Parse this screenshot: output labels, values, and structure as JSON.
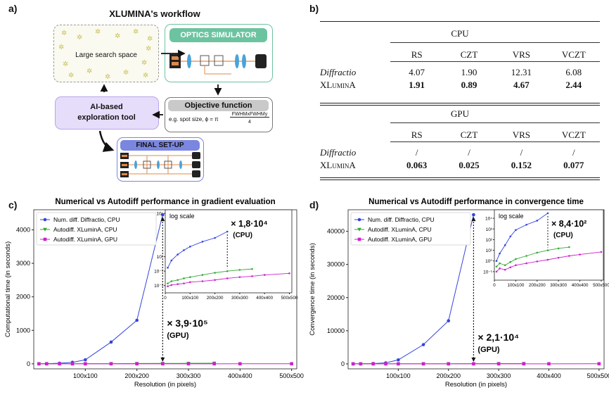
{
  "panels": {
    "a": "a)",
    "b": "b)",
    "c": "c)",
    "d": "d)"
  },
  "workflow": {
    "title": "XLUMINA's workflow",
    "search_space": "Large search space",
    "optics_simulator": "OPTICS SIMULATOR",
    "objective_title": "Objective function",
    "objective_formula_prefix": "e.g. spot size, ϕ = π",
    "objective_numerator": "FWHMxFWHMy",
    "objective_denominator": "4",
    "ai_tool": "AI-based exploration tool",
    "final_setup": "FINAL SET-UP",
    "colors": {
      "green": "#6cc3a0",
      "purple": "#b9a6e8",
      "blue": "#7b86e0",
      "gray": "#c9c9c9",
      "star": "#c7c257"
    }
  },
  "table": {
    "cpu_title": "CPU",
    "gpu_title": "GPU",
    "columns": [
      "RS",
      "CZT",
      "VRS",
      "VCZT"
    ],
    "cpu_rows": [
      {
        "label": "Diffractio",
        "values": [
          "4.07",
          "1.90",
          "12.31",
          "6.08"
        ],
        "bold": false,
        "italic": true
      },
      {
        "label": "XLuminA",
        "values": [
          "1.91",
          "0.89",
          "4.67",
          "2.44"
        ],
        "bold": true,
        "italic": false
      }
    ],
    "gpu_rows": [
      {
        "label": "Diffractio",
        "values": [
          "/",
          "/",
          "/",
          "/"
        ],
        "bold": false,
        "italic": true
      },
      {
        "label": "XLuminA",
        "values": [
          "0.063",
          "0.025",
          "0.152",
          "0.077"
        ],
        "bold": true,
        "italic": false
      }
    ]
  },
  "chart_data": [
    {
      "type": "line",
      "title": "Numerical vs Autodiff performance in gradient evaluation",
      "xlabel": "Resolution (in pixels)",
      "ylabel": "Computational time (in seconds)",
      "xlim": [
        0,
        510
      ],
      "ylim": [
        -150,
        4600
      ],
      "xticks": [
        100,
        200,
        300,
        400,
        500
      ],
      "xtick_labels": [
        "100x100",
        "200x200",
        "300x300",
        "400x400",
        "500x500"
      ],
      "yticks": [
        0,
        1000,
        2000,
        3000,
        4000
      ],
      "ytick_labels": [
        "0",
        "1000",
        "2000",
        "3000",
        "4000"
      ],
      "series": [
        {
          "name": "Num. diff. Diffractio, CPU",
          "color": "#3344dd",
          "marker": "circle",
          "x": [
            10,
            25,
            50,
            75,
            100,
            150,
            200,
            250
          ],
          "y": [
            2,
            6,
            18,
            45,
            120,
            650,
            1300,
            4450
          ]
        },
        {
          "name": "Autodiff. XLuminA, CPU",
          "color": "#33aa33",
          "marker": "triangle",
          "x": [
            10,
            25,
            50,
            75,
            100,
            150,
            200,
            250,
            300,
            350
          ],
          "y": [
            0.5,
            1,
            2,
            3,
            4,
            6,
            9,
            12,
            15,
            18
          ]
        },
        {
          "name": "Autodiff. XLuminA, GPU",
          "color": "#cc22cc",
          "marker": "square",
          "x": [
            10,
            25,
            50,
            75,
            100,
            150,
            200,
            250,
            300,
            350,
            400,
            500
          ],
          "y": [
            0.05,
            0.08,
            0.1,
            0.15,
            0.2,
            0.3,
            0.4,
            0.5,
            0.7,
            0.9,
            1.1,
            1.5
          ]
        }
      ],
      "annotation": {
        "text": "× 3,9·10⁵",
        "sub": "(GPU)",
        "x": 250,
        "y_top": 4450,
        "y_bottom": 0
      },
      "inset": {
        "label": "log scale",
        "yscale": "log",
        "ylim_exp": [
          -4,
          7.5
        ],
        "xlim": [
          0,
          510
        ],
        "ytick_labels": [
          "10⁷",
          "10¹",
          "10⁻¹",
          "10⁻³"
        ],
        "ytick_exps": [
          7,
          1,
          -1,
          -3
        ],
        "xtick_labels": [
          "0",
          "100x100",
          "200x200",
          "300x300",
          "400x400",
          "500x500"
        ],
        "xticks": [
          0,
          100,
          200,
          300,
          400,
          500
        ],
        "annotation": {
          "text": "× 1,8·10⁴",
          "sub": "(CPU)"
        },
        "series": [
          {
            "color": "#3344dd",
            "x": [
              10,
              25,
              50,
              75,
              100,
              150,
              200,
              250
            ],
            "y": [
              0.3,
              3,
              20,
              80,
              250,
              1200,
              4000,
              30000
            ]
          },
          {
            "color": "#33aa33",
            "x": [
              10,
              25,
              50,
              75,
              100,
              150,
              200,
              250,
              300,
              350
            ],
            "y": [
              0.002,
              0.004,
              0.006,
              0.01,
              0.015,
              0.03,
              0.06,
              0.1,
              0.15,
              0.2
            ]
          },
          {
            "color": "#cc22cc",
            "x": [
              10,
              25,
              50,
              75,
              100,
              150,
              200,
              250,
              300,
              350,
              400,
              500
            ],
            "y": [
              0.0008,
              0.0012,
              0.0016,
              0.002,
              0.003,
              0.004,
              0.006,
              0.01,
              0.015,
              0.02,
              0.03,
              0.05
            ]
          }
        ]
      }
    },
    {
      "type": "line",
      "title": "Numerical vs Autodiff performance in convergence time",
      "xlabel": "Resolution (in pixels)",
      "ylabel": "Convergence time (in seconds)",
      "xlim": [
        0,
        510
      ],
      "ylim": [
        -1500,
        46500
      ],
      "xticks": [
        100,
        200,
        300,
        400,
        500
      ],
      "xtick_labels": [
        "100x100",
        "200x200",
        "300x300",
        "400x400",
        "500x500"
      ],
      "yticks": [
        0,
        10000,
        20000,
        30000,
        40000
      ],
      "ytick_labels": [
        "0",
        "10000",
        "20000",
        "30000",
        "40000"
      ],
      "series": [
        {
          "name": "Num. diff. Diffractio, CPU",
          "color": "#3344dd",
          "marker": "circle",
          "x": [
            10,
            25,
            50,
            75,
            100,
            150,
            200,
            250
          ],
          "y": [
            10,
            40,
            100,
            300,
            1200,
            5800,
            13000,
            45000
          ]
        },
        {
          "name": "Autodiff. XLuminA, CPU",
          "color": "#33aa33",
          "marker": "triangle",
          "x": [
            10,
            25,
            50,
            75,
            100,
            150,
            200,
            250,
            300,
            350
          ],
          "y": [
            5,
            10,
            15,
            20,
            30,
            40,
            50,
            60,
            80,
            100
          ]
        },
        {
          "name": "Autodiff. XLuminA, GPU",
          "color": "#cc22cc",
          "marker": "square",
          "x": [
            10,
            25,
            50,
            75,
            100,
            150,
            200,
            250,
            300,
            350,
            400,
            500
          ],
          "y": [
            0.5,
            1,
            2,
            3,
            4,
            5,
            8,
            10,
            15,
            20,
            25,
            40
          ]
        }
      ],
      "annotation": {
        "text": "× 2,1·10⁴",
        "sub": "(GPU)",
        "x": 250,
        "y_top": 45000,
        "y_bottom": 0
      },
      "inset": {
        "label": "log scale",
        "yscale": "log",
        "ylim_exp": [
          -1.8,
          4.8
        ],
        "xlim": [
          0,
          510
        ],
        "ytick_labels": [
          "10⁴",
          "10³",
          "10²",
          "10¹",
          "10⁰",
          "10⁻¹"
        ],
        "ytick_exps": [
          4,
          3,
          2,
          1,
          0,
          -1
        ],
        "xtick_labels": [
          "0",
          "100x100",
          "200x200",
          "300x300",
          "400x400",
          "500x500"
        ],
        "xticks": [
          0,
          100,
          200,
          300,
          400,
          500
        ],
        "annotation": {
          "text": "× 8,4·10²",
          "sub": "(CPU)"
        },
        "series": [
          {
            "color": "#3344dd",
            "x": [
              10,
              25,
              50,
              75,
              100,
              150,
              200,
              250
            ],
            "y": [
              1,
              5,
              30,
              200,
              800,
              2500,
              6000,
              30000
            ]
          },
          {
            "color": "#33aa33",
            "x": [
              10,
              25,
              50,
              75,
              100,
              150,
              200,
              250,
              300,
              350
            ],
            "y": [
              0.3,
              0.6,
              0.4,
              0.8,
              1.5,
              3,
              6,
              10,
              15,
              20
            ]
          },
          {
            "color": "#cc22cc",
            "x": [
              10,
              25,
              50,
              75,
              100,
              150,
              200,
              250,
              300,
              350,
              400,
              500
            ],
            "y": [
              0.1,
              0.2,
              0.15,
              0.25,
              0.4,
              0.6,
              0.9,
              1.3,
              2,
              3,
              4,
              7
            ]
          }
        ]
      }
    }
  ]
}
